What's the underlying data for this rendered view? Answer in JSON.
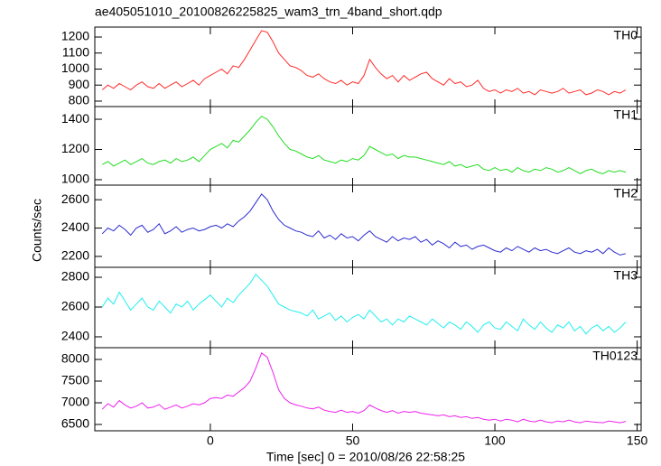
{
  "chart_data": {
    "type": "line",
    "title": "ae405051010_20100826225825_wam3_trn_4band_short.qdp",
    "xlabel": "Time [sec] 0 = 2010/08/26 22:58:25",
    "ylabel": "Counts/sec",
    "xlim": [
      -40.6,
      151.4
    ],
    "xticks": [
      0,
      50,
      100,
      150
    ],
    "x": [
      -38,
      -36,
      -34,
      -32,
      -30,
      -28,
      -26,
      -24,
      -22,
      -20,
      -18,
      -16,
      -14,
      -12,
      -10,
      -8,
      -6,
      -4,
      -2,
      0,
      2,
      4,
      6,
      8,
      10,
      12,
      14,
      16,
      18,
      20,
      22,
      24,
      26,
      28,
      30,
      32,
      34,
      36,
      38,
      40,
      42,
      44,
      46,
      48,
      50,
      52,
      54,
      56,
      58,
      60,
      62,
      64,
      66,
      68,
      70,
      72,
      74,
      76,
      78,
      80,
      82,
      84,
      86,
      88,
      90,
      92,
      94,
      96,
      98,
      100,
      102,
      104,
      106,
      108,
      110,
      112,
      114,
      116,
      118,
      120,
      122,
      124,
      126,
      128,
      130,
      132,
      134,
      136,
      138,
      140,
      142,
      144,
      146
    ],
    "series": [
      {
        "name": "TH0",
        "color": "#ff2a2a",
        "ylim": [
          766,
          1262
        ],
        "yticks": [
          800,
          900,
          1000,
          1100,
          1200
        ],
        "values": [
          870,
          900,
          880,
          910,
          890,
          870,
          900,
          920,
          890,
          880,
          910,
          880,
          900,
          920,
          890,
          910,
          930,
          900,
          940,
          960,
          980,
          1000,
          970,
          1020,
          1010,
          1060,
          1120,
          1180,
          1240,
          1230,
          1170,
          1100,
          1060,
          1020,
          1010,
          990,
          960,
          950,
          970,
          940,
          920,
          910,
          930,
          900,
          920,
          910,
          960,
          1060,
          1010,
          970,
          940,
          960,
          920,
          960,
          930,
          950,
          970,
          980,
          940,
          920,
          900,
          940,
          910,
          920,
          890,
          900,
          930,
          880,
          860,
          870,
          850,
          870,
          860,
          880,
          850,
          860,
          840,
          870,
          860,
          850,
          860,
          880,
          850,
          860,
          870,
          840,
          850,
          870,
          860,
          840,
          860,
          850,
          870
        ]
      },
      {
        "name": "TH1",
        "color": "#22dd22",
        "ylim": [
          964,
          1484
        ],
        "yticks": [
          1000,
          1200,
          1400
        ],
        "values": [
          1100,
          1120,
          1090,
          1110,
          1130,
          1100,
          1120,
          1140,
          1110,
          1100,
          1120,
          1130,
          1110,
          1140,
          1120,
          1130,
          1150,
          1120,
          1160,
          1200,
          1220,
          1240,
          1210,
          1260,
          1250,
          1290,
          1330,
          1380,
          1420,
          1400,
          1350,
          1290,
          1240,
          1200,
          1190,
          1170,
          1150,
          1140,
          1160,
          1130,
          1120,
          1110,
          1130,
          1120,
          1140,
          1130,
          1160,
          1220,
          1200,
          1180,
          1160,
          1170,
          1140,
          1160,
          1150,
          1150,
          1140,
          1130,
          1120,
          1110,
          1100,
          1120,
          1090,
          1100,
          1080,
          1090,
          1100,
          1070,
          1060,
          1080,
          1060,
          1070,
          1050,
          1080,
          1060,
          1050,
          1070,
          1060,
          1080,
          1070,
          1050,
          1060,
          1080,
          1060,
          1040,
          1060,
          1070,
          1050,
          1040,
          1060,
          1050,
          1060,
          1050
        ]
      },
      {
        "name": "TH2",
        "color": "#2a2ad0",
        "ylim": [
          2123,
          2703
        ],
        "yticks": [
          2200,
          2400,
          2600
        ],
        "values": [
          2360,
          2400,
          2380,
          2420,
          2390,
          2350,
          2400,
          2420,
          2370,
          2390,
          2430,
          2360,
          2380,
          2410,
          2370,
          2390,
          2400,
          2380,
          2390,
          2410,
          2420,
          2400,
          2430,
          2410,
          2450,
          2480,
          2520,
          2580,
          2640,
          2600,
          2520,
          2460,
          2420,
          2400,
          2380,
          2370,
          2350,
          2340,
          2380,
          2330,
          2350,
          2320,
          2360,
          2330,
          2340,
          2310,
          2350,
          2380,
          2340,
          2320,
          2300,
          2340,
          2310,
          2330,
          2320,
          2340,
          2300,
          2320,
          2280,
          2310,
          2290,
          2260,
          2300,
          2270,
          2280,
          2250,
          2270,
          2280,
          2260,
          2240,
          2230,
          2260,
          2240,
          2270,
          2250,
          2230,
          2260,
          2240,
          2250,
          2230,
          2220,
          2240,
          2260,
          2230,
          2220,
          2240,
          2230,
          2250,
          2220,
          2260,
          2230,
          2210,
          2220
        ]
      },
      {
        "name": "TH3",
        "color": "#22eeee",
        "ylim": [
          2327,
          2867
        ],
        "yticks": [
          2400,
          2600,
          2800
        ],
        "values": [
          2600,
          2660,
          2620,
          2700,
          2640,
          2580,
          2620,
          2660,
          2600,
          2580,
          2640,
          2600,
          2560,
          2620,
          2600,
          2640,
          2580,
          2620,
          2650,
          2680,
          2640,
          2600,
          2660,
          2630,
          2680,
          2720,
          2760,
          2820,
          2780,
          2740,
          2680,
          2620,
          2600,
          2580,
          2570,
          2560,
          2540,
          2580,
          2520,
          2540,
          2560,
          2510,
          2540,
          2500,
          2530,
          2550,
          2520,
          2580,
          2540,
          2500,
          2520,
          2480,
          2520,
          2500,
          2540,
          2520,
          2500,
          2480,
          2520,
          2490,
          2460,
          2500,
          2480,
          2450,
          2500,
          2470,
          2430,
          2480,
          2500,
          2460,
          2450,
          2500,
          2470,
          2440,
          2520,
          2480,
          2450,
          2500,
          2460,
          2430,
          2480,
          2460,
          2500,
          2440,
          2470,
          2420,
          2460,
          2480,
          2440,
          2470,
          2430,
          2460,
          2500
        ]
      },
      {
        "name": "TH0123",
        "color": "#ee22ee",
        "ylim": [
          6354,
          8271
        ],
        "yticks": [
          6500,
          7000,
          7500,
          8000
        ],
        "values": [
          6850,
          6980,
          6900,
          7050,
          6950,
          6880,
          6920,
          7000,
          6880,
          6900,
          6960,
          6850,
          6900,
          6950,
          6880,
          6920,
          6980,
          6950,
          7000,
          7100,
          7120,
          7100,
          7180,
          7150,
          7250,
          7350,
          7500,
          7800,
          8150,
          8050,
          7700,
          7300,
          7100,
          7000,
          6950,
          6920,
          6880,
          6860,
          6900,
          6830,
          6800,
          6780,
          6830,
          6780,
          6800,
          6760,
          6820,
          6950,
          6880,
          6820,
          6780,
          6820,
          6760,
          6800,
          6780,
          6800,
          6760,
          6740,
          6720,
          6700,
          6720,
          6680,
          6700,
          6660,
          6680,
          6640,
          6660,
          6620,
          6600,
          6620,
          6580,
          6620,
          6600,
          6560,
          6620,
          6580,
          6560,
          6600,
          6560,
          6540,
          6580,
          6560,
          6600,
          6560,
          6540,
          6580,
          6560,
          6550,
          6540,
          6580,
          6560,
          6540,
          6570
        ]
      }
    ]
  }
}
